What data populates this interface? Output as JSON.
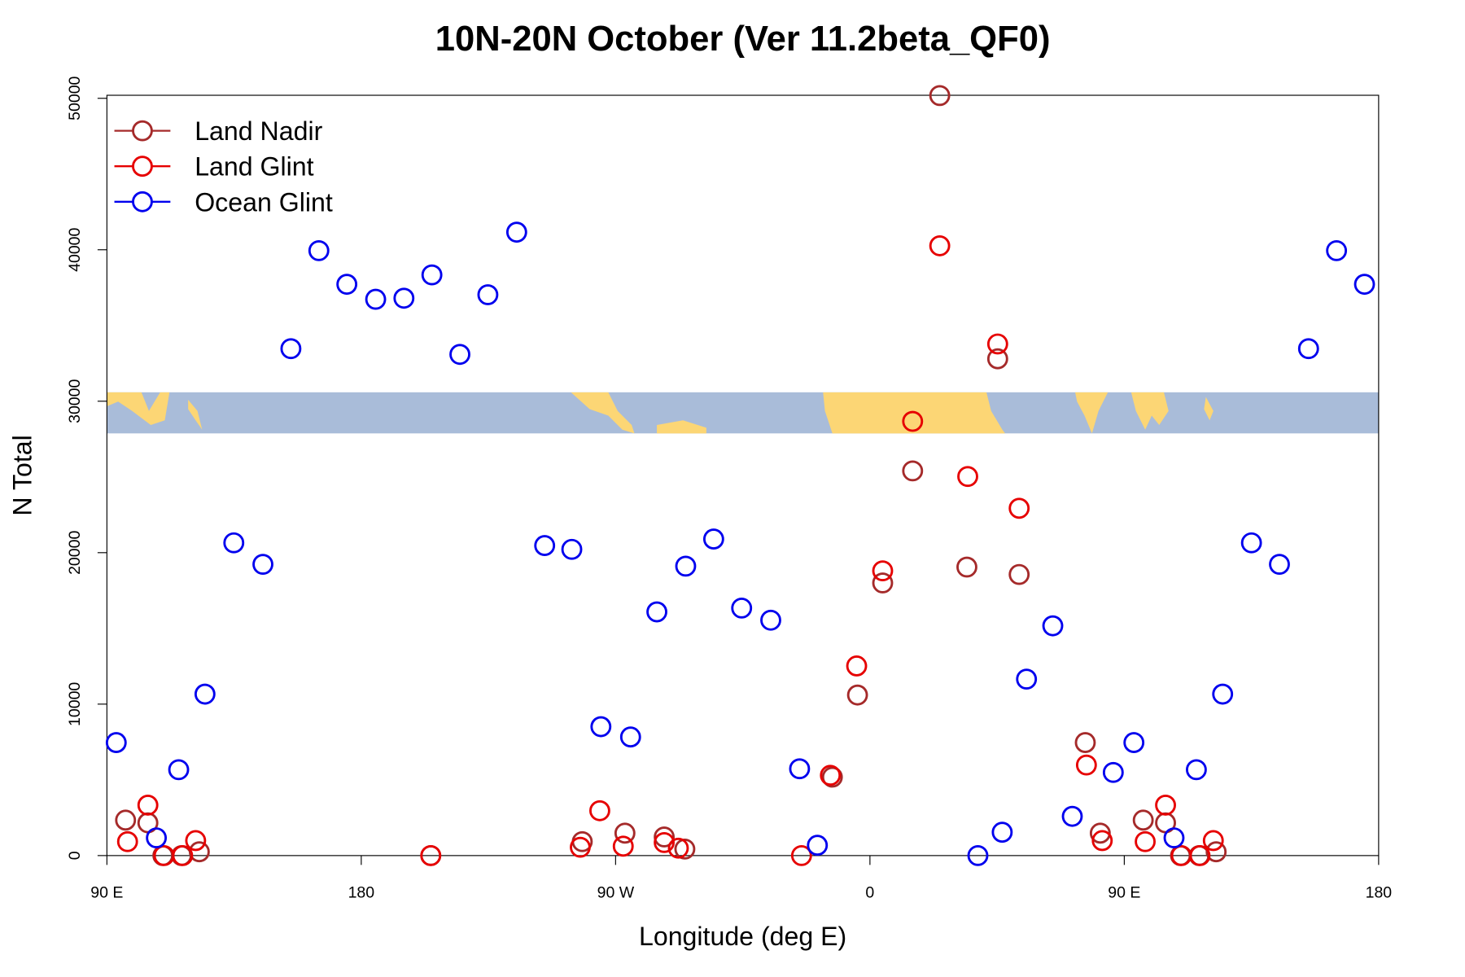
{
  "chart_data": {
    "type": "scatter",
    "title": "10N-20N October (Ver 11.2beta_QF0)",
    "x_label": "Longitude (deg E)",
    "y_label": "N Total",
    "xlim": [
      90,
      540
    ],
    "ylim": [
      0,
      50200
    ],
    "xticks": [
      {
        "value": 90,
        "label": "90 E"
      },
      180,
      {
        "value": 270,
        "label": "90 W"
      },
      {
        "value": 360,
        "label": "0"
      },
      {
        "value": 450,
        "label": "90 E"
      },
      {
        "value": 540,
        "label": "180"
      }
    ],
    "yticks": [
      0,
      10000,
      20000,
      30000,
      40000,
      50000
    ],
    "legend": "top-left",
    "series": [
      {
        "name": "Land Nadir",
        "color": "#a52a2a",
        "x": [
          96.6,
          104.5,
          109.8,
          116.4,
          122.7,
          204.6,
          258.2,
          273.3,
          287.2,
          294.5,
          346.7,
          355.6,
          364.5,
          375.1,
          384.7,
          394.3,
          405.2,
          412.8,
          436.2,
          441.5,
          456.7,
          464.6,
          469.9,
          476.5,
          482.5
        ],
        "values": [
          2340,
          2160,
          0,
          0,
          250,
          0,
          920,
          1480,
          1230,
          430,
          5180,
          10600,
          18000,
          25400,
          50180,
          19050,
          32800,
          18560,
          7460,
          1480,
          2340,
          2160,
          0,
          0,
          250
        ]
      },
      {
        "name": "Land Glint",
        "color": "#e60000",
        "x": [
          97.3,
          104.5,
          110.2,
          116.8,
          121.4,
          204.6,
          257.5,
          264.4,
          272.7,
          287.2,
          292.2,
          335.8,
          346.0,
          355.3,
          364.5,
          375.1,
          384.7,
          394.6,
          405.2,
          412.8,
          436.6,
          442.2,
          457.4,
          464.6,
          470.2,
          476.8,
          481.5
        ],
        "values": [
          920,
          3330,
          0,
          0,
          990,
          0,
          550,
          2960,
          620,
          860,
          490,
          0,
          5300,
          12520,
          18800,
          28670,
          40260,
          25030,
          33780,
          22930,
          5980,
          990,
          920,
          3330,
          0,
          0,
          990
        ]
      },
      {
        "name": "Ocean Glint",
        "color": "#0000ee",
        "x": [
          93.3,
          107.5,
          115.4,
          124.7,
          134.9,
          145.2,
          155.1,
          165.0,
          174.9,
          185.1,
          195.1,
          205.0,
          214.9,
          224.8,
          235.0,
          244.9,
          254.5,
          264.8,
          275.3,
          284.6,
          294.8,
          304.7,
          314.6,
          324.9,
          335.1,
          341.4,
          398.2,
          406.8,
          415.4,
          424.7,
          431.6,
          446.1,
          453.4,
          467.6,
          475.5,
          484.8,
          495.0,
          504.9,
          515.2,
          525.1,
          535.0
        ],
        "values": [
          7460,
          1170,
          5670,
          10660,
          20650,
          19230,
          33470,
          39940,
          37720,
          36730,
          36800,
          38340,
          33090,
          37030,
          41160,
          20470,
          20220,
          8510,
          7830,
          16090,
          19110,
          20900,
          16340,
          15540,
          5730,
          680,
          0,
          1540,
          11650,
          15170,
          2590,
          5490,
          7460,
          1170,
          5670,
          10660,
          20650,
          19230,
          33470,
          39940,
          37720
        ]
      }
    ]
  }
}
